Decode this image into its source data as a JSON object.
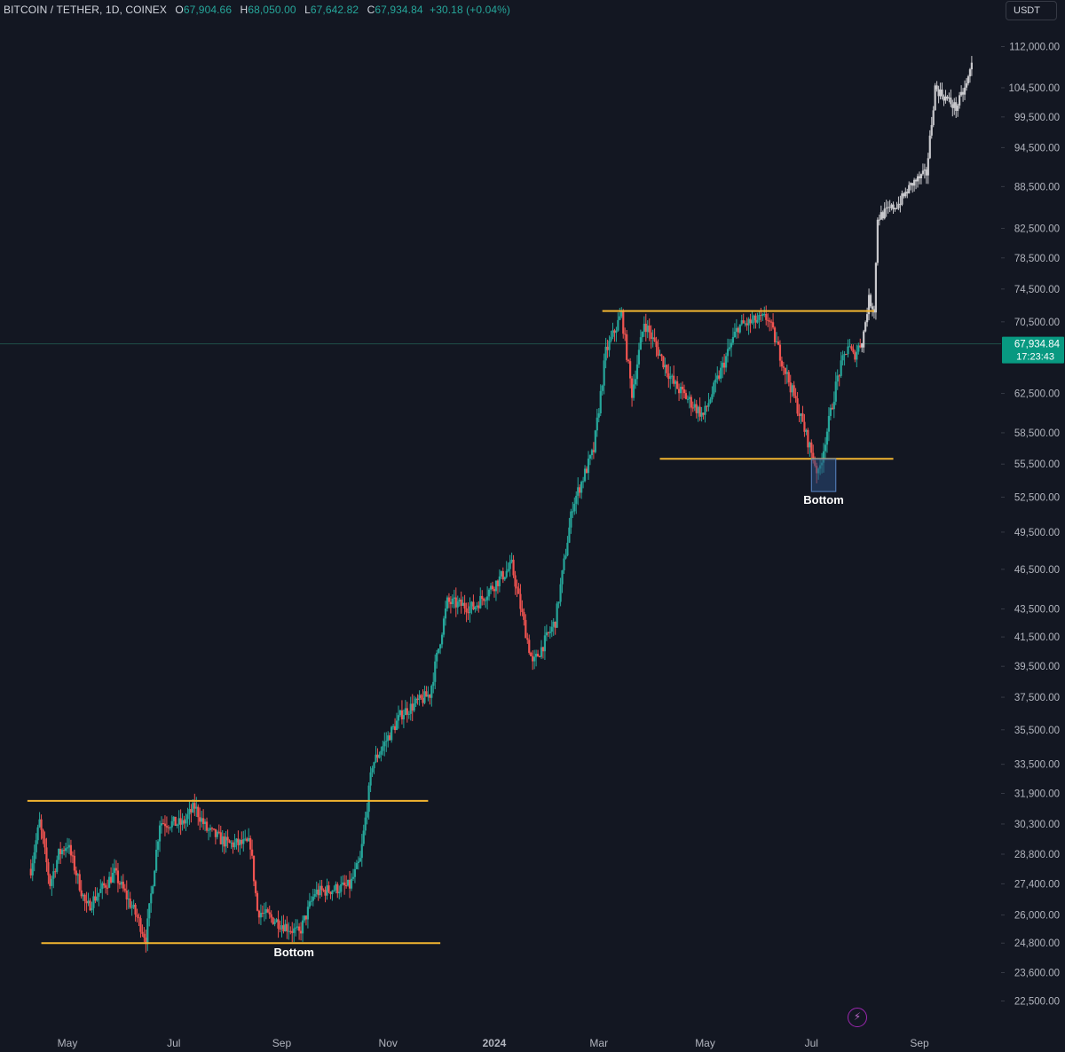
{
  "header": {
    "symbol": "BITCOIN / TETHER, 1D, COINEX",
    "o_label": "O",
    "o_value": "67,904.66",
    "h_label": "H",
    "h_value": "68,050.00",
    "l_label": "L",
    "l_value": "67,642.82",
    "c_label": "C",
    "c_value": "67,934.84",
    "change": "+30.18 (+0.04%)"
  },
  "currency_button": "USDT",
  "bolt_icon": "lightning-icon",
  "colors": {
    "background": "#131722",
    "up": "#26a69a",
    "down": "#ef5350",
    "projection": "#c8c8cc",
    "level_line": "#f2b530",
    "price_tag": "#089981",
    "bottom_box": "#2a4a7a"
  },
  "chart_data": {
    "type": "candlestick",
    "title": "",
    "xlabel": "",
    "ylabel": "",
    "y_scale": "log",
    "ylim": [
      21500,
      118000
    ],
    "x_tick_labels": [
      "May",
      "Jul",
      "Sep",
      "Nov",
      "2024",
      "Mar",
      "May",
      "Jul",
      "Sep"
    ],
    "x_tick_dates": [
      "2023-05-01",
      "2023-07-01",
      "2023-09-01",
      "2023-11-01",
      "2024-01-01",
      "2024-03-01",
      "2024-05-01",
      "2024-07-01",
      "2024-09-01"
    ],
    "y_tick_labels": [
      "112,000.00",
      "104,500.00",
      "99,500.00",
      "94,500.00",
      "88,500.00",
      "82,500.00",
      "78,500.00",
      "74,500.00",
      "70,500.00",
      "62,500.00",
      "58,500.00",
      "55,500.00",
      "52,500.00",
      "49,500.00",
      "46,500.00",
      "43,500.00",
      "41,500.00",
      "39,500.00",
      "37,500.00",
      "35,500.00",
      "33,500.00",
      "31,900.00",
      "30,300.00",
      "28,800.00",
      "27,400.00",
      "26,000.00",
      "24,800.00",
      "23,600.00",
      "22,500.00"
    ],
    "current_price": {
      "label": "67,934.84",
      "countdown": "17:23:43",
      "value": 67934.84
    },
    "series": [
      {
        "role": "price",
        "anchors": [
          [
            "2023-04-10",
            28100
          ],
          [
            "2023-04-15",
            30400
          ],
          [
            "2023-04-21",
            27400
          ],
          [
            "2023-04-26",
            28800
          ],
          [
            "2023-05-01",
            29300
          ],
          [
            "2023-05-12",
            26300
          ],
          [
            "2023-05-28",
            27900
          ],
          [
            "2023-06-10",
            25900
          ],
          [
            "2023-06-15",
            25000
          ],
          [
            "2023-06-23",
            30400
          ],
          [
            "2023-07-06",
            30300
          ],
          [
            "2023-07-13",
            31200
          ],
          [
            "2023-07-20",
            30000
          ],
          [
            "2023-08-01",
            29300
          ],
          [
            "2023-08-14",
            29300
          ],
          [
            "2023-08-18",
            26200
          ],
          [
            "2023-09-11",
            25200
          ],
          [
            "2023-09-20",
            27000
          ],
          [
            "2023-10-10",
            27300
          ],
          [
            "2023-10-16",
            28500
          ],
          [
            "2023-10-23",
            33500
          ],
          [
            "2023-11-09",
            36500
          ],
          [
            "2023-11-25",
            37700
          ],
          [
            "2023-12-05",
            44000
          ],
          [
            "2023-12-20",
            43600
          ],
          [
            "2024-01-11",
            46800
          ],
          [
            "2024-01-23",
            39600
          ],
          [
            "2024-02-05",
            42600
          ],
          [
            "2024-02-15",
            51800
          ],
          [
            "2024-02-27",
            56800
          ],
          [
            "2024-03-05",
            67000
          ],
          [
            "2024-03-14",
            71400
          ],
          [
            "2024-03-20",
            62500
          ],
          [
            "2024-03-27",
            70500
          ],
          [
            "2024-04-13",
            63500
          ],
          [
            "2024-04-30",
            60200
          ],
          [
            "2024-05-20",
            70000
          ],
          [
            "2024-06-06",
            71000
          ],
          [
            "2024-06-24",
            60500
          ],
          [
            "2024-07-05",
            54500
          ],
          [
            "2024-07-16",
            64200
          ],
          [
            "2024-07-22",
            67800
          ],
          [
            "2024-07-25",
            66500
          ],
          [
            "2024-07-29",
            67934
          ]
        ]
      },
      {
        "role": "projection",
        "anchors": [
          [
            "2024-07-30",
            68000
          ],
          [
            "2024-08-03",
            73200
          ],
          [
            "2024-08-06",
            72000
          ],
          [
            "2024-08-08",
            84000
          ],
          [
            "2024-08-20",
            86000
          ],
          [
            "2024-08-28",
            89000
          ],
          [
            "2024-09-05",
            90500
          ],
          [
            "2024-09-10",
            104500
          ],
          [
            "2024-09-22",
            101000
          ],
          [
            "2024-09-28",
            105000
          ],
          [
            "2024-10-02",
            110000
          ]
        ]
      }
    ],
    "levels": [
      {
        "from": "2023-04-08",
        "to": "2023-11-24",
        "price": 31500
      },
      {
        "from": "2023-04-16",
        "to": "2023-12-01",
        "price": 24800
      },
      {
        "from": "2024-03-03",
        "to": "2024-08-06",
        "price": 71800
      },
      {
        "from": "2024-04-05",
        "to": "2024-08-17",
        "price": 56000
      }
    ],
    "annotations": [
      {
        "text": "Bottom",
        "date": "2023-09-08",
        "price": 24800
      },
      {
        "text": "Bottom",
        "date": "2024-07-16",
        "price": 56000,
        "box": {
          "from": "2024-07-01",
          "to": "2024-07-15",
          "top": 56000,
          "bottom": 53000
        }
      }
    ]
  }
}
